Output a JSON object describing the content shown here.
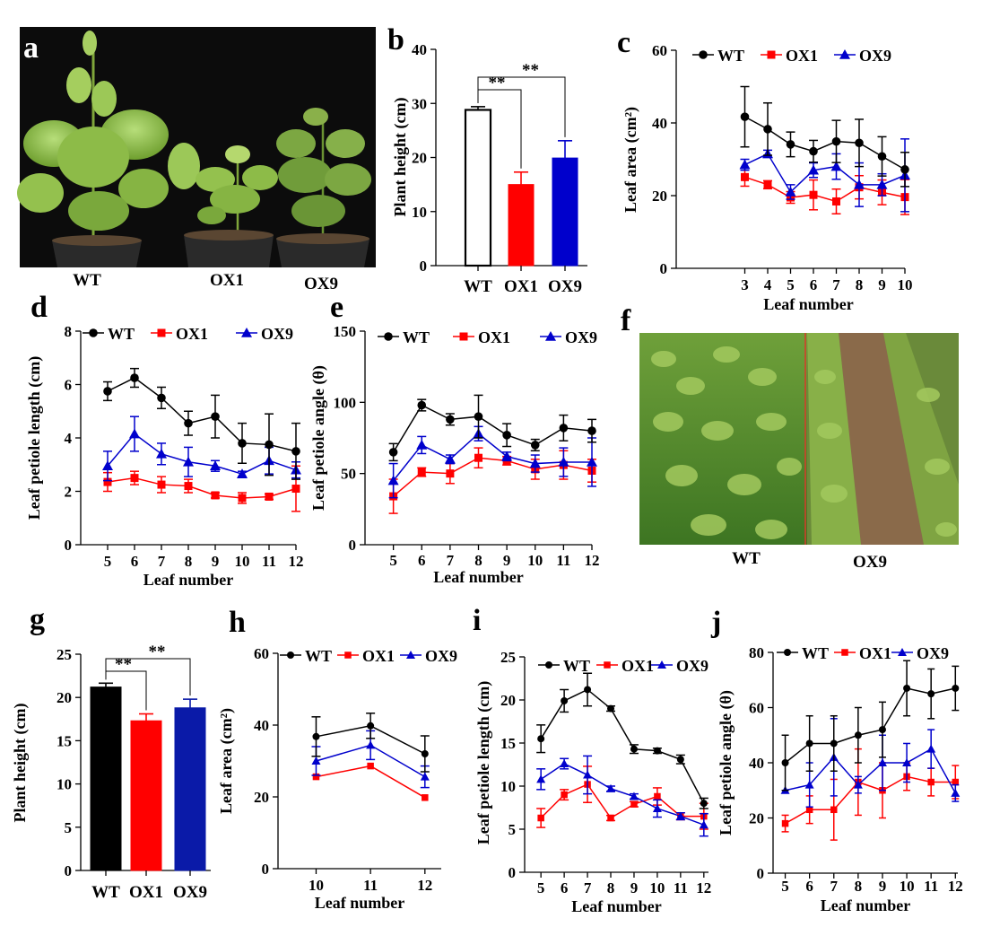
{
  "panel_labels": {
    "a": "a",
    "b": "b",
    "c": "c",
    "d": "d",
    "e": "e",
    "f": "f",
    "g": "g",
    "h": "h",
    "i": "i",
    "j": "j"
  },
  "photo_a": {
    "labels": [
      "WT",
      "OX1",
      "OX9"
    ]
  },
  "photo_f": {
    "labels": [
      "WT",
      "OX9"
    ]
  },
  "colors": {
    "WT": "#000000",
    "OX1": "#ff0000",
    "OX9": "#0000cc",
    "OX9_dark": "#0a1aa8"
  },
  "chart_data": [
    {
      "id": "b",
      "type": "bar",
      "categories": [
        "WT",
        "OX1",
        "OX9"
      ],
      "values": [
        28.8,
        15.0,
        19.9
      ],
      "errors": [
        0.6,
        2.3,
        3.2
      ],
      "fills": [
        "#ffffff",
        "#ff0000",
        "#0000cc"
      ],
      "ylabel": "Plant height (cm)",
      "ylim": [
        0,
        40
      ],
      "yticks": [
        0,
        10,
        20,
        30,
        40
      ],
      "significance": [
        {
          "from": 0,
          "to": 1,
          "label": "**"
        },
        {
          "from": 0,
          "to": 2,
          "label": "**"
        }
      ]
    },
    {
      "id": "c",
      "type": "line",
      "x": [
        3,
        4,
        5,
        6,
        7,
        8,
        9,
        10
      ],
      "xticks": [
        3,
        4,
        5,
        6,
        7,
        8,
        9,
        10
      ],
      "xlim": [
        0,
        10
      ],
      "xlabel": "Leaf number",
      "ylabel": "Leaf area (cm²)",
      "ylim": [
        0,
        60
      ],
      "yticks": [
        0,
        20,
        40,
        60
      ],
      "legend": "top",
      "series": [
        {
          "name": "WT",
          "values": [
            41.7,
            38.3,
            34.1,
            32.2,
            34.9,
            34.5,
            30.8,
            27.2
          ],
          "errors": [
            8.3,
            7.2,
            3.4,
            3.0,
            5.8,
            6.5,
            5.4,
            4.7
          ]
        },
        {
          "name": "OX1",
          "values": [
            25.1,
            23.0,
            19.5,
            20.2,
            18.4,
            22.3,
            20.9,
            19.6
          ],
          "errors": [
            2.5,
            1.1,
            1.6,
            4.1,
            3.4,
            3.2,
            3.4,
            4.8
          ]
        },
        {
          "name": "OX9",
          "values": [
            28.5,
            31.5,
            21.0,
            27.0,
            28.0,
            23.0,
            23.0,
            25.6
          ],
          "errors": [
            1.5,
            1.0,
            2.0,
            2.0,
            3.5,
            6.0,
            3.0,
            10.0
          ]
        }
      ]
    },
    {
      "id": "d",
      "type": "line",
      "x": [
        5,
        6,
        7,
        8,
        9,
        10,
        11,
        12
      ],
      "xticks": [
        5,
        6,
        7,
        8,
        9,
        10,
        11,
        12
      ],
      "xlim": [
        4,
        12
      ],
      "xlabel": "Leaf number",
      "ylabel": "Leaf petiole length (cm)",
      "ylim": [
        0,
        8
      ],
      "yticks": [
        0,
        2,
        4,
        6,
        8
      ],
      "legend": "top",
      "series": [
        {
          "name": "WT",
          "values": [
            5.75,
            6.25,
            5.5,
            4.55,
            4.8,
            3.8,
            3.75,
            3.5
          ],
          "errors": [
            0.35,
            0.35,
            0.4,
            0.45,
            0.8,
            0.75,
            1.15,
            1.05
          ]
        },
        {
          "name": "OX1",
          "values": [
            2.35,
            2.5,
            2.25,
            2.2,
            1.85,
            1.75,
            1.8,
            2.1
          ],
          "errors": [
            0.35,
            0.25,
            0.3,
            0.25,
            0.1,
            0.2,
            0.1,
            0.85
          ]
        },
        {
          "name": "OX9",
          "values": [
            2.95,
            4.15,
            3.4,
            3.1,
            2.95,
            2.65,
            3.15,
            2.8
          ],
          "errors": [
            0.55,
            0.65,
            0.4,
            0.55,
            0.2,
            0.1,
            0.5,
            0.3
          ]
        }
      ]
    },
    {
      "id": "e",
      "type": "line",
      "x": [
        5,
        6,
        7,
        8,
        9,
        10,
        11,
        12
      ],
      "xticks": [
        5,
        6,
        7,
        8,
        9,
        10,
        11,
        12
      ],
      "xlim": [
        4,
        12
      ],
      "xlabel": "Leaf number",
      "ylabel": "Leaf petiole angle (θ)",
      "ylim": [
        0,
        150
      ],
      "yticks": [
        0,
        50,
        100,
        150
      ],
      "legend": "top",
      "series": [
        {
          "name": "WT",
          "values": [
            65,
            98,
            88,
            90,
            77,
            70,
            82,
            80
          ],
          "errors": [
            6,
            4,
            4,
            15,
            8,
            4,
            9,
            8
          ]
        },
        {
          "name": "OX1",
          "values": [
            34,
            51,
            50,
            61,
            59,
            53,
            56,
            52
          ],
          "errors": [
            12,
            3,
            7,
            7,
            3,
            7,
            10,
            8
          ]
        },
        {
          "name": "OX9",
          "values": [
            45,
            70,
            60,
            78,
            62,
            57,
            58,
            58
          ],
          "errors": [
            12,
            6,
            3,
            5,
            3,
            6,
            10,
            17
          ]
        }
      ]
    },
    {
      "id": "g",
      "type": "bar",
      "categories": [
        "WT",
        "OX1",
        "OX9"
      ],
      "values": [
        21.2,
        17.3,
        18.8
      ],
      "errors": [
        0.45,
        0.8,
        1.0
      ],
      "fills": [
        "#000000",
        "#ff0000",
        "#0a1aa8"
      ],
      "ylabel": "Plant height (cm)",
      "ylim": [
        0,
        25
      ],
      "yticks": [
        0,
        5,
        10,
        15,
        20,
        25
      ],
      "significance": [
        {
          "from": 0,
          "to": 1,
          "label": "**"
        },
        {
          "from": 0,
          "to": 2,
          "label": "**"
        }
      ]
    },
    {
      "id": "h",
      "type": "line",
      "x": [
        10,
        11,
        12
      ],
      "xticks": [
        10,
        11,
        12
      ],
      "xlim": [
        9.3,
        12.3
      ],
      "xlabel": "Leaf number",
      "ylabel": "Leaf area (cm²)",
      "ylim": [
        0,
        60
      ],
      "yticks": [
        0,
        20,
        40,
        60
      ],
      "legend": "top",
      "series": [
        {
          "name": "WT",
          "values": [
            36.8,
            39.8,
            32.0
          ],
          "errors": [
            5.5,
            3.5,
            5.0
          ]
        },
        {
          "name": "OX1",
          "values": [
            25.6,
            28.6,
            19.8
          ],
          "errors": [
            0,
            0,
            0
          ]
        },
        {
          "name": "OX9",
          "values": [
            30.0,
            34.4,
            25.6
          ],
          "errors": [
            4.0,
            4.0,
            3.0
          ]
        }
      ]
    },
    {
      "id": "i",
      "type": "line",
      "x": [
        5,
        6,
        7,
        8,
        9,
        10,
        11,
        12
      ],
      "xticks": [
        5,
        6,
        7,
        8,
        9,
        10,
        11,
        12
      ],
      "xlim": [
        4.3,
        12.2
      ],
      "xlabel": "Leaf number",
      "ylabel": "Leaf petiole length (cm)",
      "ylim": [
        0,
        25
      ],
      "yticks": [
        0,
        5,
        10,
        15,
        20,
        25
      ],
      "legend": "top",
      "series": [
        {
          "name": "WT",
          "values": [
            15.5,
            19.9,
            21.2,
            19.0,
            14.3,
            14.1,
            13.1,
            8.0
          ],
          "errors": [
            1.6,
            1.3,
            1.9,
            0.3,
            0.5,
            0.3,
            0.5,
            0.6
          ]
        },
        {
          "name": "OX1",
          "values": [
            6.3,
            9.0,
            10.2,
            6.3,
            7.9,
            8.8,
            6.5,
            6.5
          ],
          "errors": [
            1.1,
            0.6,
            2.1,
            0.3,
            0.3,
            1.0,
            0.4,
            1.5
          ]
        },
        {
          "name": "OX9",
          "values": [
            10.8,
            12.6,
            11.3,
            9.7,
            8.8,
            7.4,
            6.5,
            5.5
          ],
          "errors": [
            1.2,
            0.6,
            2.2,
            0.3,
            0.3,
            1.0,
            0.4,
            1.3
          ]
        }
      ]
    },
    {
      "id": "j",
      "type": "line",
      "x": [
        5,
        6,
        7,
        8,
        9,
        10,
        11,
        12
      ],
      "xticks": [
        5,
        6,
        7,
        8,
        9,
        10,
        11,
        12
      ],
      "xlim": [
        4.5,
        12.1
      ],
      "xlabel": "Leaf number",
      "ylabel": "Leaf petiole angle (θ)",
      "ylim": [
        0,
        80
      ],
      "yticks": [
        0,
        20,
        40,
        60,
        80
      ],
      "legend": "top",
      "series": [
        {
          "name": "WT",
          "values": [
            40,
            47,
            47,
            50,
            52,
            67,
            65,
            67
          ],
          "errors": [
            10,
            10,
            10,
            10,
            10,
            10,
            9,
            8
          ]
        },
        {
          "name": "OX1",
          "values": [
            18,
            23,
            23,
            33,
            30,
            35,
            33,
            33
          ],
          "errors": [
            3,
            5,
            11,
            12,
            10,
            5,
            5,
            6
          ]
        },
        {
          "name": "OX9",
          "values": [
            30,
            32,
            42,
            32,
            40,
            40,
            45,
            29
          ],
          "errors": [
            0,
            8,
            14,
            3,
            10,
            7,
            7,
            3
          ]
        }
      ]
    }
  ]
}
